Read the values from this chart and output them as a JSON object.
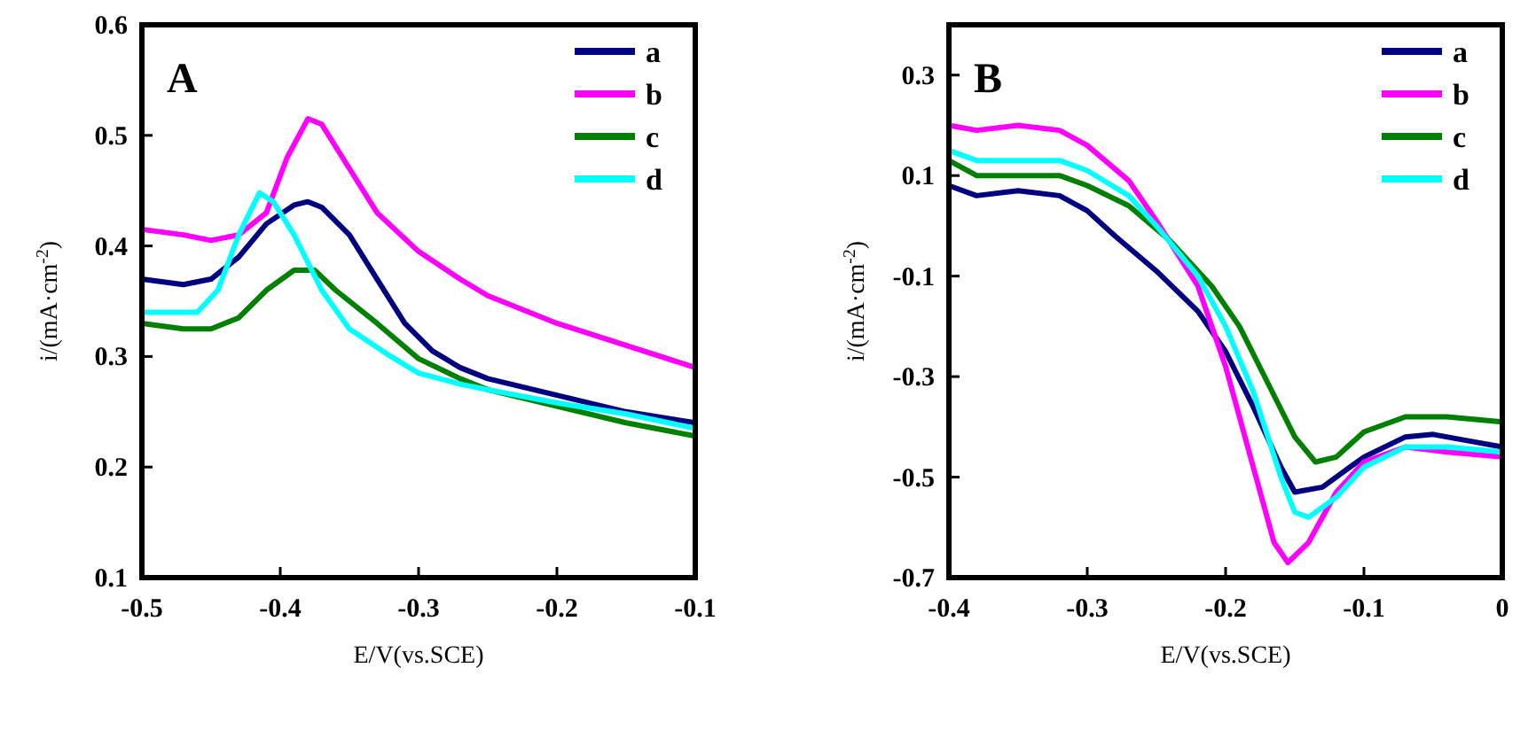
{
  "chart_data": [
    {
      "type": "line",
      "title": "A",
      "xlabel": "E/V(vs.SCE)",
      "ylabel": "i/(mA·cm$^{-2}$)",
      "xlim": [
        -0.5,
        -0.1
      ],
      "xticks": [
        -0.5,
        -0.4,
        -0.3,
        -0.2,
        -0.1
      ],
      "ylim": [
        0.1,
        0.6
      ],
      "yticks": [
        0.1,
        0.2,
        0.3,
        0.4,
        0.5,
        0.6
      ],
      "legend": "top right",
      "grid": false,
      "marker": "none",
      "line_style": "solid",
      "series": [
        {
          "name": "a",
          "color": "#000080",
          "x": [
            -0.5,
            -0.47,
            -0.45,
            -0.43,
            -0.41,
            -0.39,
            -0.38,
            -0.37,
            -0.35,
            -0.33,
            -0.31,
            -0.29,
            -0.27,
            -0.25,
            -0.2,
            -0.15,
            -0.1
          ],
          "values": [
            0.37,
            0.365,
            0.37,
            0.39,
            0.42,
            0.437,
            0.44,
            0.435,
            0.41,
            0.37,
            0.33,
            0.305,
            0.29,
            0.28,
            0.265,
            0.25,
            0.24
          ]
        },
        {
          "name": "b",
          "color": "#ff00ff",
          "x": [
            -0.5,
            -0.47,
            -0.45,
            -0.43,
            -0.41,
            -0.395,
            -0.38,
            -0.37,
            -0.35,
            -0.33,
            -0.3,
            -0.27,
            -0.25,
            -0.2,
            -0.15,
            -0.1
          ],
          "values": [
            0.415,
            0.41,
            0.405,
            0.41,
            0.43,
            0.48,
            0.515,
            0.51,
            0.47,
            0.43,
            0.395,
            0.37,
            0.355,
            0.33,
            0.31,
            0.29
          ]
        },
        {
          "name": "c",
          "color": "#008000",
          "x": [
            -0.5,
            -0.47,
            -0.45,
            -0.43,
            -0.41,
            -0.39,
            -0.375,
            -0.36,
            -0.33,
            -0.3,
            -0.27,
            -0.25,
            -0.2,
            -0.15,
            -0.1
          ],
          "values": [
            0.33,
            0.325,
            0.325,
            0.335,
            0.36,
            0.378,
            0.378,
            0.36,
            0.33,
            0.298,
            0.28,
            0.27,
            0.255,
            0.24,
            0.228
          ]
        },
        {
          "name": "d",
          "color": "#00ffff",
          "x": [
            -0.5,
            -0.46,
            -0.445,
            -0.43,
            -0.415,
            -0.405,
            -0.39,
            -0.37,
            -0.35,
            -0.32,
            -0.3,
            -0.27,
            -0.25,
            -0.2,
            -0.15,
            -0.1
          ],
          "values": [
            0.34,
            0.34,
            0.36,
            0.41,
            0.448,
            0.44,
            0.41,
            0.36,
            0.325,
            0.3,
            0.285,
            0.275,
            0.27,
            0.258,
            0.248,
            0.235
          ]
        }
      ]
    },
    {
      "type": "line",
      "title": "B",
      "xlabel": "E/V(vs.SCE)",
      "ylabel": "i/(mA·cm$^{-2}$)",
      "xlim": [
        -0.4,
        0
      ],
      "xticks": [
        -0.4,
        -0.3,
        -0.2,
        -0.1,
        0
      ],
      "ylim": [
        -0.7,
        0.4
      ],
      "yticks": [
        -0.7,
        -0.5,
        -0.3,
        -0.1,
        0.1,
        0.3
      ],
      "legend": "top right",
      "grid": false,
      "marker": "none",
      "line_style": "solid",
      "series": [
        {
          "name": "a",
          "color": "#000080",
          "x": [
            -0.4,
            -0.38,
            -0.35,
            -0.32,
            -0.3,
            -0.28,
            -0.25,
            -0.22,
            -0.2,
            -0.18,
            -0.16,
            -0.15,
            -0.13,
            -0.1,
            -0.07,
            -0.05,
            -0.02,
            0
          ],
          "values": [
            0.08,
            0.06,
            0.07,
            0.06,
            0.03,
            -0.02,
            -0.09,
            -0.17,
            -0.25,
            -0.36,
            -0.48,
            -0.53,
            -0.52,
            -0.46,
            -0.42,
            -0.415,
            -0.43,
            -0.44
          ]
        },
        {
          "name": "b",
          "color": "#ff00ff",
          "x": [
            -0.4,
            -0.38,
            -0.35,
            -0.32,
            -0.3,
            -0.27,
            -0.25,
            -0.22,
            -0.2,
            -0.18,
            -0.165,
            -0.155,
            -0.14,
            -0.12,
            -0.1,
            -0.07,
            -0.04,
            0
          ],
          "values": [
            0.2,
            0.19,
            0.2,
            0.19,
            0.16,
            0.09,
            0.01,
            -0.12,
            -0.28,
            -0.48,
            -0.63,
            -0.67,
            -0.63,
            -0.53,
            -0.47,
            -0.44,
            -0.45,
            -0.46
          ]
        },
        {
          "name": "c",
          "color": "#008000",
          "x": [
            -0.4,
            -0.38,
            -0.35,
            -0.32,
            -0.3,
            -0.27,
            -0.24,
            -0.21,
            -0.19,
            -0.17,
            -0.15,
            -0.135,
            -0.12,
            -0.1,
            -0.07,
            -0.04,
            0
          ],
          "values": [
            0.13,
            0.1,
            0.1,
            0.1,
            0.08,
            0.04,
            -0.03,
            -0.12,
            -0.2,
            -0.31,
            -0.42,
            -0.47,
            -0.46,
            -0.41,
            -0.38,
            -0.38,
            -0.39
          ]
        },
        {
          "name": "d",
          "color": "#00ffff",
          "x": [
            -0.4,
            -0.38,
            -0.35,
            -0.32,
            -0.3,
            -0.27,
            -0.25,
            -0.22,
            -0.2,
            -0.18,
            -0.16,
            -0.15,
            -0.14,
            -0.12,
            -0.1,
            -0.07,
            -0.04,
            0
          ],
          "values": [
            0.15,
            0.13,
            0.13,
            0.13,
            0.11,
            0.06,
            0.0,
            -0.1,
            -0.2,
            -0.33,
            -0.5,
            -0.57,
            -0.58,
            -0.54,
            -0.48,
            -0.44,
            -0.44,
            -0.45
          ]
        }
      ]
    }
  ]
}
